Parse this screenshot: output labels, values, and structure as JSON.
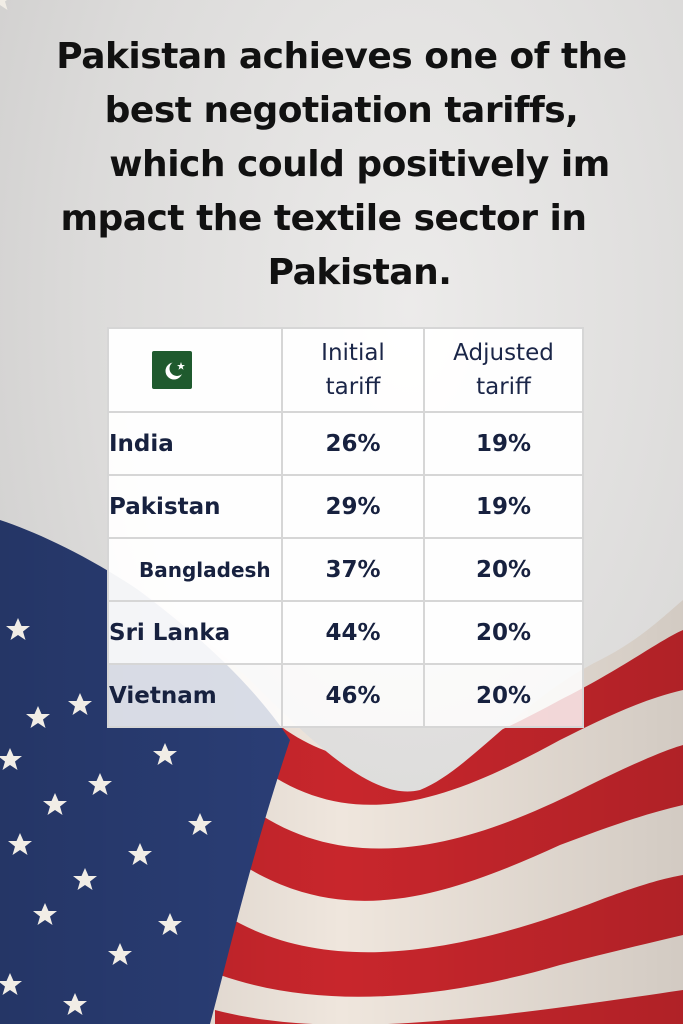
{
  "headline": {
    "lines": [
      "Pakistan achieves one of the",
      "best negotiation tariffs,",
      "   which could positively im",
      "mpact the textile sector in   ",
      "   Pakistan."
    ]
  },
  "table": {
    "header_icon": "pakistan-flag-icon",
    "columns": [
      {
        "line1": "Initial",
        "line2": "tariff"
      },
      {
        "line1": "Adjusted",
        "line2": "tariff"
      }
    ],
    "rows": [
      {
        "country": "India",
        "initial": "26%",
        "adjusted": "19%"
      },
      {
        "country": "Pakistan",
        "initial": "29%",
        "adjusted": "19%"
      },
      {
        "country": "Bangladesh",
        "initial": "37%",
        "adjusted": "20%"
      },
      {
        "country": "Sri Lanka",
        "initial": "44%",
        "adjusted": "20%"
      },
      {
        "country": "Vietnam",
        "initial": "46%",
        "adjusted": "20%"
      }
    ]
  },
  "colors": {
    "flag_blue": "#2b3f78",
    "flag_red": "#c8262c",
    "flag_white": "#efe6dd",
    "pk_green": "#1f5a2e"
  },
  "background_image": "us-flag-draped"
}
